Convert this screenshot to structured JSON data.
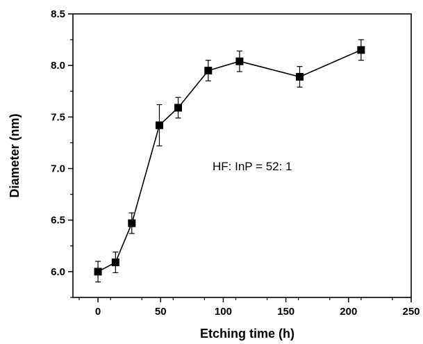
{
  "chart_data": {
    "type": "scatter",
    "xlabel": "Etching time (h)",
    "ylabel": "Diameter (nm)",
    "xlim": [
      -20,
      250
    ],
    "ylim": [
      5.75,
      8.5
    ],
    "x_ticks": [
      0,
      50,
      100,
      150,
      200,
      250
    ],
    "y_ticks": [
      6.0,
      6.5,
      7.0,
      7.5,
      8.0,
      8.5
    ],
    "x_tick_labels": [
      "0",
      "50",
      "100",
      "150",
      "200",
      "250"
    ],
    "y_tick_labels": [
      "6.0",
      "6.5",
      "7.0",
      "7.5",
      "8.0",
      "8.5"
    ],
    "grid": false,
    "legend": "none",
    "annotation": "HF: InP = 52: 1",
    "series": [
      {
        "marker": "square",
        "line": true,
        "color": "#000000",
        "x": [
          0,
          14,
          27,
          49,
          64,
          88,
          113,
          161,
          210
        ],
        "y": [
          6.0,
          6.09,
          6.47,
          7.42,
          7.59,
          7.95,
          8.04,
          7.89,
          8.15
        ],
        "error": [
          0.1,
          0.1,
          0.1,
          0.2,
          0.1,
          0.1,
          0.1,
          0.1,
          0.1
        ]
      }
    ]
  }
}
